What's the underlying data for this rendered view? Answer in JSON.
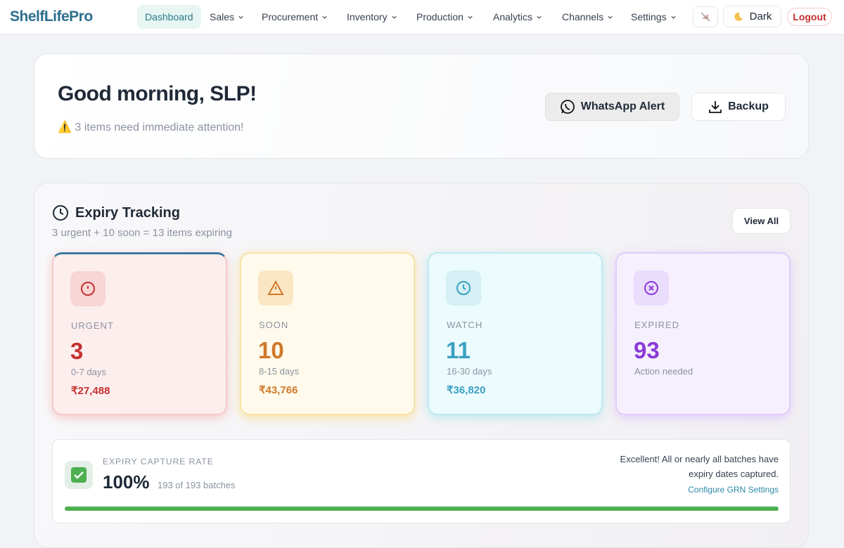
{
  "nav": {
    "brand": "ShelfLifePro",
    "items": [
      "Dashboard",
      "Sales",
      "Procurement",
      "Inventory",
      "Production",
      "Analytics",
      "Channels",
      "Settings"
    ],
    "theme": "Dark",
    "logout": "Logout"
  },
  "header": {
    "greeting": "Good morning, SLP!",
    "alert": "⚠️ 3 items need immediate attention!",
    "buttons": [
      "WhatsApp Alert",
      "Backup"
    ]
  },
  "expiry": {
    "title": "Expiry Tracking",
    "subtitle": "3 urgent + 10 soon = 13 items expiring",
    "view_all": "View All",
    "cards": [
      {
        "label": "URGENT",
        "count": "3",
        "range": "0-7 days",
        "amount": "₹27,488"
      },
      {
        "label": "SOON",
        "count": "10",
        "range": "8-15 days",
        "amount": "₹43,766"
      },
      {
        "label": "WATCH",
        "count": "11",
        "range": "16-30 days",
        "amount": "₹36,820"
      },
      {
        "label": "EXPIRED",
        "count": "93",
        "range": "Action needed"
      }
    ]
  },
  "capture": {
    "label": "EXPIRY CAPTURE RATE",
    "rate": "100%",
    "batches": "193 of 193 batches",
    "message": "Excellent! All or nearly all batches have expiry dates captured.",
    "link": "Configure GRN Settings"
  }
}
